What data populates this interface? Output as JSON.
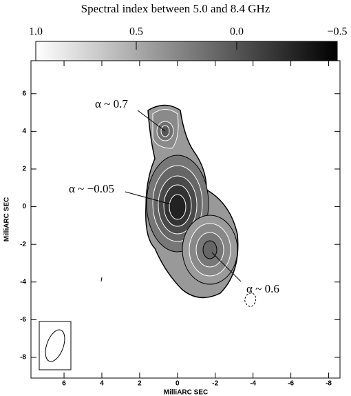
{
  "chart_data": {
    "type": "image",
    "title": "Spectral index between 5.0 and 8.4 GHz",
    "xlabel": "MilliARC SEC",
    "ylabel": "MilliARC SEC",
    "xlim": [
      7.75,
      -8.6
    ],
    "ylim": [
      -9.1,
      7.75
    ],
    "xticks": [
      6,
      4,
      2,
      0,
      -2,
      -4,
      -6,
      -8
    ],
    "yticks": [
      6,
      4,
      2,
      0,
      -2,
      -4,
      -6,
      -8
    ],
    "clim": [
      1.0,
      -0.5
    ],
    "cticks": [
      {
        "value": 1.0,
        "label": "1.0"
      },
      0.5,
      {
        "value": 0,
        "label": "0.0"
      },
      {
        "value": -0.5,
        "label": "−0.5"
      }
    ],
    "colormap": [
      "#ffffff",
      "#000000"
    ],
    "annotations": [
      "α ~ 0.7",
      "α ~ −0.05",
      "α ~ 0.6"
    ]
  }
}
